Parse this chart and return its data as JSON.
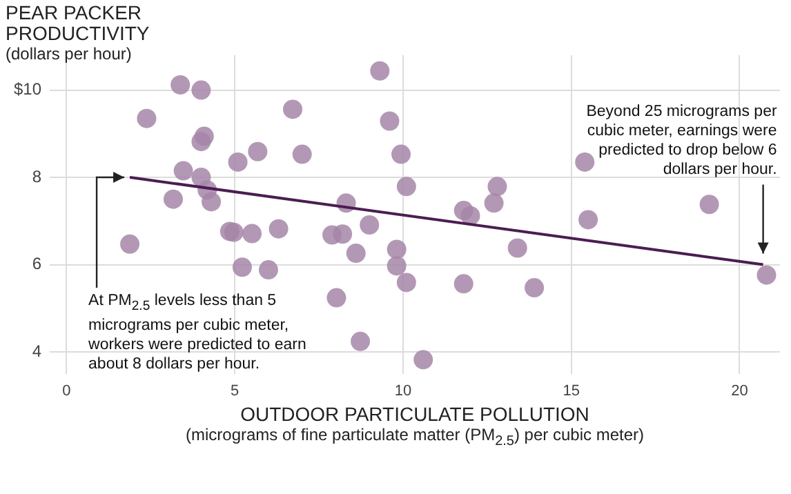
{
  "chart_data": {
    "type": "scatter",
    "ylabel": "PEAR PACKER\nPRODUCTIVITY\n(dollars per hour)",
    "xlabel": "OUTDOOR PARTICULATE POLLUTION\n(micrograms of fine particulate matter (PM$_{2.5}$) per cubic meter)",
    "xlim": [
      -0.5,
      21.2
    ],
    "xticks": [
      0,
      5,
      10,
      15,
      20
    ],
    "ylim": [
      3.5,
      10.8
    ],
    "yticks": [
      4,
      6,
      8,
      {
        "value": 10,
        "label": "$10"
      }
    ],
    "grid": true,
    "legend": false,
    "marker": "circle",
    "series": [
      {
        "color": "#a585a8",
        "x": [
          3.38,
          4.0,
          2.38,
          4.09,
          4.0,
          5.68,
          5.09,
          3.47,
          4.0,
          4.18,
          3.17,
          4.3,
          4.85,
          4.97,
          5.51,
          6.3,
          1.88,
          5.22,
          6.0,
          9.31,
          6.72,
          9.6,
          7.0,
          9.94,
          10.1,
          12.8,
          12.7,
          8.31,
          11.8,
          12.0,
          7.89,
          8.2,
          9.0,
          8.6,
          9.81,
          9.81,
          10.1,
          11.8,
          8.02,
          8.73,
          10.6,
          13.4,
          15.4,
          19.1,
          15.5,
          13.9,
          20.8
        ],
        "values": [
          10.12,
          10.0,
          9.35,
          8.94,
          8.82,
          8.59,
          8.35,
          8.15,
          8.0,
          7.71,
          7.5,
          7.44,
          6.76,
          6.74,
          6.71,
          6.82,
          6.47,
          5.94,
          5.88,
          10.44,
          9.56,
          9.29,
          8.53,
          8.53,
          7.79,
          7.79,
          7.41,
          7.41,
          7.24,
          7.12,
          6.68,
          6.7,
          6.91,
          6.26,
          6.35,
          5.97,
          5.59,
          5.56,
          5.24,
          4.24,
          3.82,
          6.38,
          8.35,
          7.38,
          7.03,
          5.47,
          5.76
        ]
      },
      {
        "type": "line",
        "color": "#4b1d52",
        "marker": "none",
        "x": [
          1.88,
          20.7
        ],
        "values": [
          8.0,
          6.0
        ]
      }
    ],
    "annotations": [
      {
        "text": "At PM$_{2.5}$ levels less than 5 micrograms per cubic meter, workers were predicted to earn about 8 dollars per hour.",
        "x": 1.88,
        "y": 8.0
      },
      {
        "text": "Beyond 25 micrograms per cubic meter, earnings were predicted to drop below 6 dollars per hour.",
        "x": 20.7,
        "y": 6.0
      }
    ]
  }
}
